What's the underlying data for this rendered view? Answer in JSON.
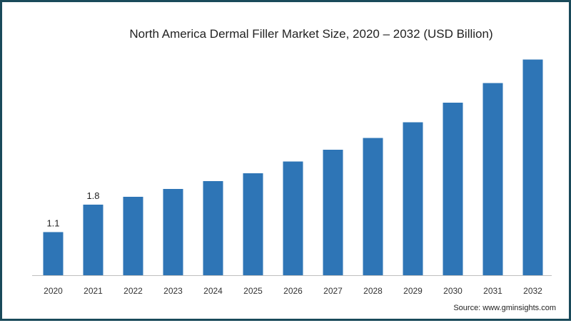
{
  "chart_data": {
    "type": "bar",
    "title": "North America Dermal Filler Market Size, 2020 – 2032 (USD Billion)",
    "xlabel": "",
    "ylabel": "",
    "categories": [
      "2020",
      "2021",
      "2022",
      "2023",
      "2024",
      "2025",
      "2026",
      "2027",
      "2028",
      "2029",
      "2030",
      "2031",
      "2032"
    ],
    "values": [
      1.1,
      1.8,
      2.0,
      2.2,
      2.4,
      2.6,
      2.9,
      3.2,
      3.5,
      3.9,
      4.4,
      4.9,
      5.5
    ],
    "data_labels": {
      "0": "1.1",
      "1": "1.8"
    },
    "ylim": [
      0,
      6
    ],
    "grid": false,
    "bar_color": "#2e75b6"
  },
  "source": "Source: www.gminsights.com",
  "colors": {
    "frame_border": "#1a4a5a",
    "axis_line": "#bfbfbf"
  }
}
